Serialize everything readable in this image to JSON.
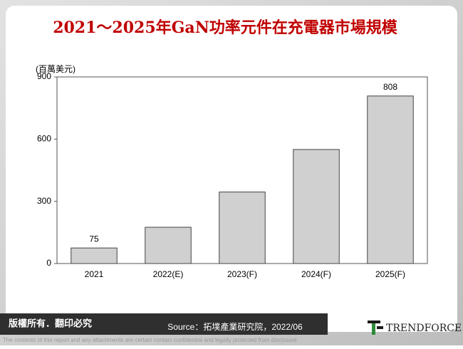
{
  "chart_data": {
    "type": "bar",
    "title": "2021～2025年GaN功率元件在充電器市場規模",
    "y_label": "(百萬美元)",
    "categories": [
      "2021",
      "2022(E)",
      "2023(F)",
      "2024(F)",
      "2025(F)"
    ],
    "values": [
      75,
      175,
      345,
      550,
      808
    ],
    "value_labels": [
      "75",
      null,
      null,
      null,
      "808"
    ],
    "color": "#d0d0d0",
    "ylim": [
      0,
      900
    ],
    "yticks": [
      0,
      300,
      600,
      900
    ]
  },
  "footer": {
    "copyright": "版權所有．翻印必究",
    "source": "Source：拓墣產業研究院，2022/06",
    "logo": "TRENDFORCE",
    "disclaimer": "The contents of this report and any attachments are certain contain confidential and legally protected from disclosure."
  }
}
